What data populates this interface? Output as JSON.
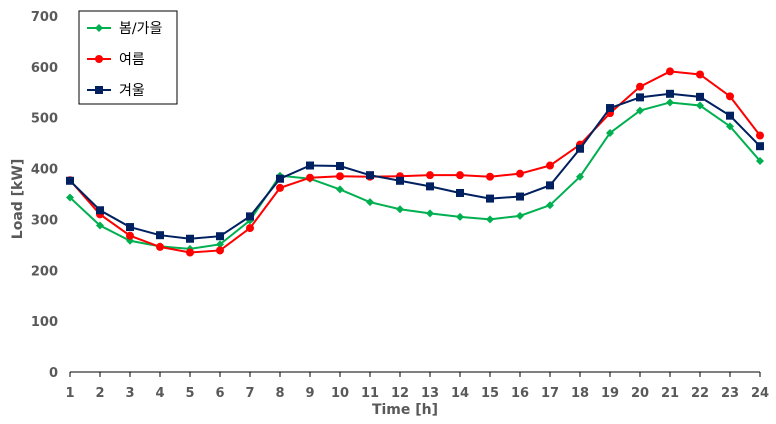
{
  "chart_data": {
    "type": "line",
    "title": "",
    "xlabel": "Time [h]",
    "ylabel": "Load [kW]",
    "x": [
      1,
      2,
      3,
      4,
      5,
      6,
      7,
      8,
      9,
      10,
      11,
      12,
      13,
      14,
      15,
      16,
      17,
      18,
      19,
      20,
      21,
      22,
      23,
      24
    ],
    "ylim": [
      0,
      700
    ],
    "yticks": [
      0,
      100,
      200,
      300,
      400,
      500,
      600,
      700
    ],
    "grid": false,
    "legend_position": "top-left",
    "series": [
      {
        "name": "봄/가을",
        "color": "#00b050",
        "marker": "diamond",
        "values": [
          343,
          288,
          258,
          247,
          242,
          251,
          298,
          386,
          380,
          359,
          334,
          320,
          312,
          305,
          300,
          307,
          328,
          384,
          470,
          514,
          530,
          524,
          483,
          415
        ]
      },
      {
        "name": "여름",
        "color": "#ff0000",
        "marker": "circle",
        "values": [
          377,
          310,
          268,
          246,
          235,
          239,
          283,
          362,
          382,
          385,
          384,
          385,
          387,
          387,
          384,
          390,
          406,
          447,
          509,
          561,
          591,
          585,
          542,
          465
        ]
      },
      {
        "name": "겨울",
        "color": "#002060",
        "marker": "square",
        "values": [
          376,
          318,
          285,
          269,
          262,
          267,
          306,
          380,
          406,
          405,
          387,
          376,
          365,
          352,
          341,
          345,
          367,
          439,
          519,
          540,
          547,
          541,
          504,
          444
        ]
      }
    ]
  }
}
